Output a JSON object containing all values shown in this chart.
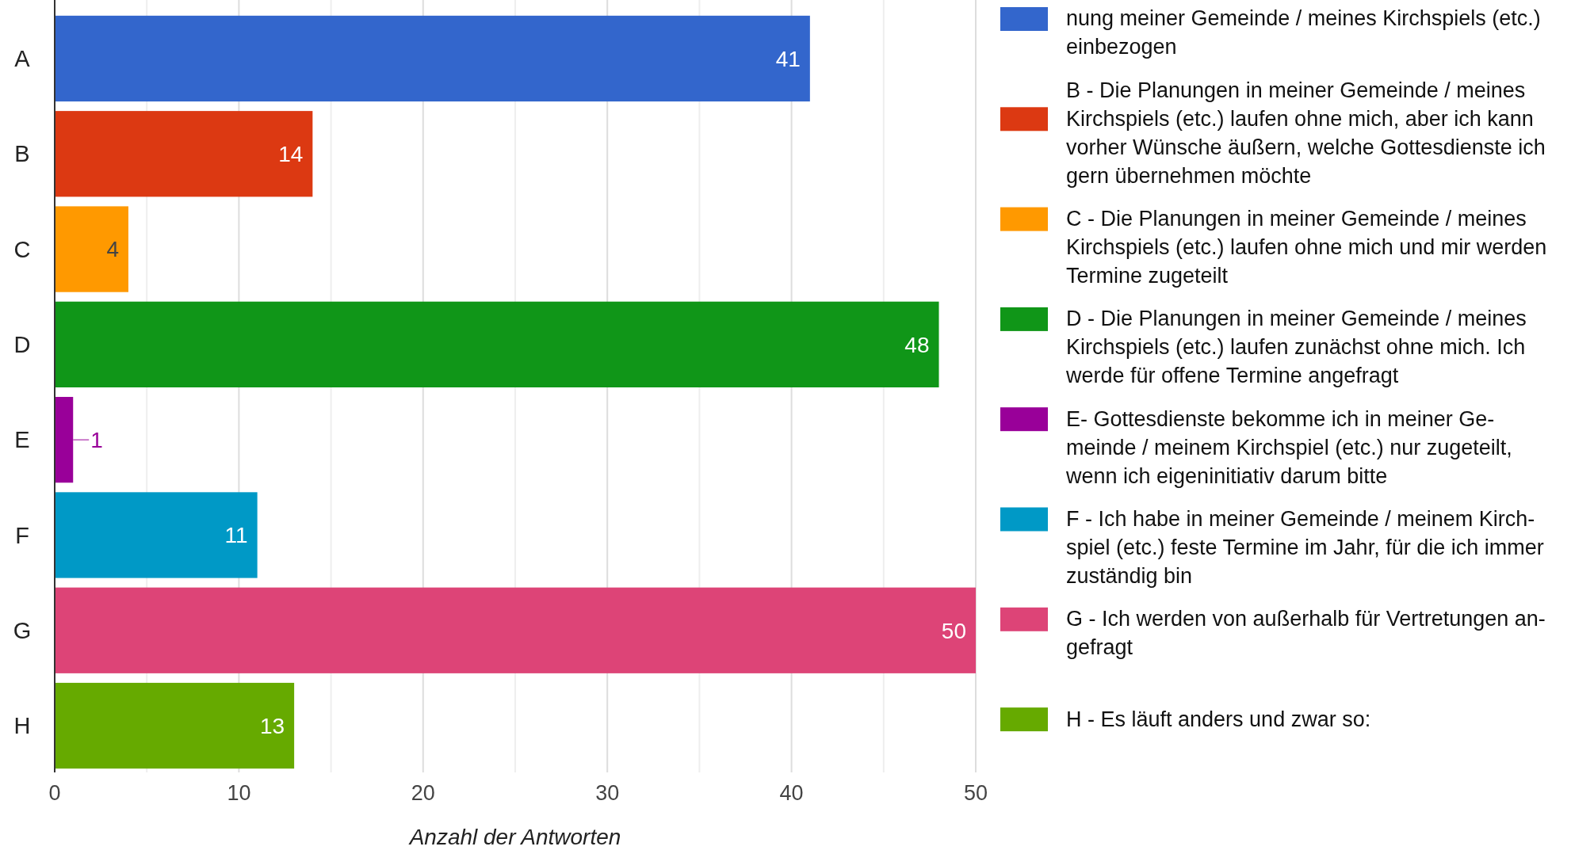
{
  "chart_data": {
    "type": "bar",
    "orientation": "horizontal",
    "categories": [
      "A",
      "B",
      "C",
      "D",
      "E",
      "F",
      "G",
      "H"
    ],
    "series": [
      {
        "name": "nung meiner Gemeinde / meines Kirchspiels (etc.)\neinbezogen",
        "color": "#3366cc",
        "values": [
          41,
          null,
          null,
          null,
          null,
          null,
          null,
          null
        ]
      },
      {
        "name": "B - Die Planungen in meiner Gemeinde / meines\nKirchspiels (etc.) laufen ohne mich, aber ich kann\nvorher Wünsche äußern, welche Gottesdienste ich\ngern übernehmen möchte",
        "color": "#dc3912",
        "values": [
          null,
          14,
          null,
          null,
          null,
          null,
          null,
          null
        ]
      },
      {
        "name": "C - Die Planungen in meiner Gemeinde / meines\nKirchspiels (etc.) laufen ohne mich und mir werden\nTermine zugeteilt",
        "color": "#ff9900",
        "values": [
          null,
          null,
          4,
          null,
          null,
          null,
          null,
          null
        ]
      },
      {
        "name": "D - Die Planungen in meiner Gemeinde / meines\nKirchspiels (etc.) laufen zunächst ohne mich. Ich\nwerde für offene Termine angefragt",
        "color": "#109618",
        "values": [
          null,
          null,
          null,
          48,
          null,
          null,
          null,
          null
        ]
      },
      {
        "name": "E- Gottesdienste bekomme ich in meiner Ge-\nmeinde / meinem Kirchspiel (etc.) nur zugeteilt,\nwenn ich eigeninitiativ darum bitte",
        "color": "#990099",
        "values": [
          null,
          null,
          null,
          null,
          1,
          null,
          null,
          null
        ]
      },
      {
        "name": "F - Ich habe in meiner Gemeinde / meinem Kirch-\nspiel (etc.) feste Termine im Jahr, für die ich immer\nzuständig bin",
        "color": "#0099c6",
        "values": [
          null,
          null,
          null,
          null,
          null,
          11,
          null,
          null
        ]
      },
      {
        "name": "G - Ich werden von außerhalb für Vertretungen an-\ngefragt",
        "color": "#dd4477",
        "values": [
          null,
          null,
          null,
          null,
          null,
          null,
          50,
          null
        ]
      },
      {
        "name": "H - Es läuft anders und zwar so:",
        "color": "#66aa00",
        "values": [
          null,
          null,
          null,
          null,
          null,
          null,
          null,
          13
        ]
      }
    ],
    "xlabel": "Anzahl der Antworten",
    "xlim": [
      0,
      50
    ],
    "xticks": [
      0,
      {
        "value": 5,
        "label": null
      },
      10,
      {
        "value": 15,
        "label": null
      },
      20,
      {
        "value": 25,
        "label": null
      },
      30,
      {
        "value": 35,
        "label": null
      },
      40,
      {
        "value": 45,
        "label": null
      },
      50
    ],
    "grid": "x",
    "data_labels": true,
    "legend": "right"
  }
}
